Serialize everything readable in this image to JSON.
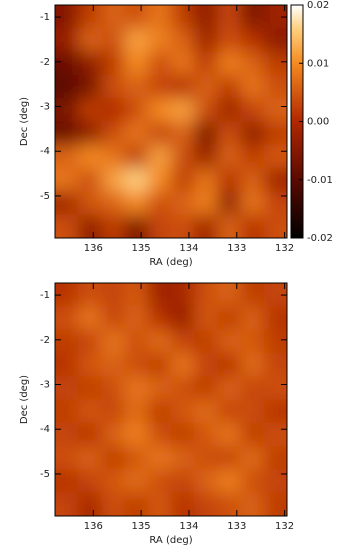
{
  "chart_data": [
    {
      "type": "heatmap",
      "xlabel": "RA (deg)",
      "ylabel": "Dec (deg)",
      "xlim": [
        136.8,
        131.95
      ],
      "ylim": [
        -5.94,
        -0.73
      ],
      "xticks": [
        136,
        135,
        134,
        133,
        132
      ],
      "yticks": [
        -1,
        -2,
        -3,
        -4,
        -5
      ],
      "colorbar": {
        "clim": [
          -0.02,
          0.02
        ],
        "ticks": [
          0.02,
          0.01,
          {
            "value": 0,
            "label": "0.00"
          },
          -0.01,
          -0.02
        ]
      },
      "z": [
        [
          -0.005,
          0.002,
          0.006,
          0.004,
          0.008,
          0.002,
          -0.004,
          0.003,
          -0.006,
          -0.002
        ],
        [
          -0.003,
          0.006,
          0.004,
          0.012,
          0.009,
          0.006,
          -0.002,
          0.004,
          0.001,
          -0.004
        ],
        [
          -0.008,
          -0.004,
          0.002,
          0.01,
          0.004,
          0.008,
          0.002,
          0.009,
          0.006,
          0.002
        ],
        [
          -0.01,
          -0.006,
          0.004,
          0.006,
          0.003,
          0.001,
          0.006,
          0.002,
          0.008,
          0.004
        ],
        [
          -0.006,
          0.002,
          0.0,
          0.004,
          0.01,
          0.012,
          0.004,
          -0.002,
          0.003,
          0.006
        ],
        [
          -0.008,
          -0.004,
          0.004,
          0.008,
          0.003,
          0.006,
          -0.006,
          0.004,
          -0.004,
          0.002
        ],
        [
          0.006,
          0.01,
          0.008,
          0.002,
          0.012,
          0.004,
          -0.003,
          0.006,
          0.002,
          0.005
        ],
        [
          0.008,
          0.004,
          0.012,
          0.016,
          0.01,
          0.002,
          0.008,
          0.001,
          0.006,
          -0.002
        ],
        [
          -0.002,
          0.005,
          0.006,
          0.01,
          0.004,
          0.006,
          0.009,
          -0.004,
          0.008,
          0.003
        ],
        [
          0.004,
          -0.004,
          0.002,
          -0.006,
          0.003,
          0.004,
          -0.002,
          0.006,
          0.001,
          0.004
        ]
      ]
    },
    {
      "type": "heatmap",
      "xlabel": "RA (deg)",
      "ylabel": "Dec (deg)",
      "xlim": [
        136.8,
        131.95
      ],
      "ylim": [
        -5.94,
        -0.73
      ],
      "xticks": [
        136,
        135,
        134,
        133,
        132
      ],
      "yticks": [
        -1,
        -2,
        -3,
        -4,
        -5
      ],
      "z": [
        [
          0.001,
          0.004,
          0.003,
          0.005,
          -0.002,
          -0.001,
          0.004,
          0.006,
          0.002,
          0.003
        ],
        [
          0.004,
          0.008,
          0.003,
          0.006,
          0.001,
          -0.003,
          0.005,
          0.002,
          0.006,
          0.001
        ],
        [
          0.002,
          0.003,
          0.008,
          0.004,
          0.007,
          0.003,
          0.002,
          0.006,
          0.005,
          0.002
        ],
        [
          0.001,
          0.005,
          0.006,
          0.004,
          0.002,
          0.008,
          0.003,
          0.001,
          0.007,
          0.003
        ],
        [
          0.003,
          0.002,
          0.004,
          0.008,
          0.006,
          0.004,
          0.002,
          0.006,
          0.003,
          0.004
        ],
        [
          0.002,
          0.005,
          0.003,
          0.007,
          0.002,
          0.005,
          0.007,
          0.003,
          0.004,
          0.001
        ],
        [
          0.003,
          0.001,
          0.006,
          0.009,
          0.004,
          0.002,
          0.005,
          0.008,
          0.002,
          0.004
        ],
        [
          0.004,
          0.006,
          0.002,
          0.005,
          0.008,
          0.006,
          0.004,
          0.003,
          0.007,
          0.002
        ],
        [
          0.001,
          0.003,
          0.005,
          0.007,
          0.004,
          0.003,
          0.006,
          0.009,
          0.004,
          0.003
        ],
        [
          0.003,
          -0.001,
          0.004,
          0.002,
          0.005,
          0.001,
          0.003,
          0.004,
          0.006,
          0.002
        ]
      ]
    }
  ]
}
